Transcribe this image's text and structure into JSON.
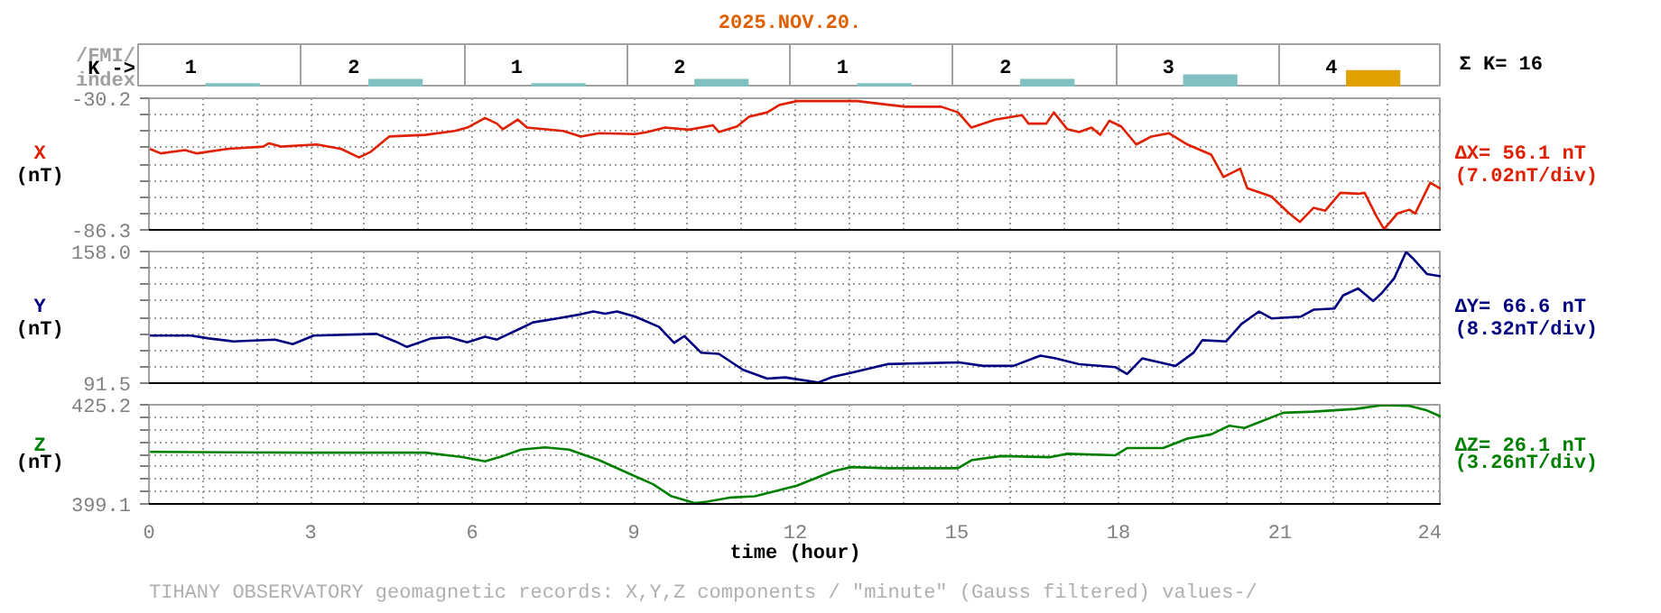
{
  "chart_data": [
    {
      "type": "bar",
      "title": "2025.NOV.20.",
      "ylabel": "K ->",
      "annotations": [
        "/FMI/",
        "index",
        "Σ K= 16"
      ],
      "categories": [
        null,
        null,
        null,
        null,
        null,
        null,
        null,
        null
      ],
      "values": [
        1,
        2,
        1,
        2,
        1,
        2,
        3,
        4
      ],
      "colors": [
        "#80c0c0",
        "#80c0c0",
        "#80c0c0",
        "#80c0c0",
        "#80c0c0",
        "#80c0c0",
        "#80c0c0",
        "#e0a000"
      ],
      "data_labels": true
    },
    {
      "type": "line",
      "ylabel": "X (nT)",
      "annotations": [
        "ΔX= 56.1 nT",
        "(7.02nT/div)"
      ],
      "tick_labels": "y",
      "grid": true,
      "xlim": [
        0,
        24
      ],
      "ylim": [
        -86.3,
        -30.2
      ],
      "xticks": [
        0,
        {
          "value": 1,
          "label": null
        },
        {
          "value": 2,
          "label": null
        },
        3,
        {
          "value": 4,
          "label": null
        },
        {
          "value": 5,
          "label": null
        },
        6,
        {
          "value": 7,
          "label": null
        },
        {
          "value": 8,
          "label": null
        },
        9,
        {
          "value": 10,
          "label": null
        },
        {
          "value": 11,
          "label": null
        },
        12,
        {
          "value": 13,
          "label": null
        },
        {
          "value": 14,
          "label": null
        },
        15,
        {
          "value": 16,
          "label": null
        },
        {
          "value": 17,
          "label": null
        },
        18,
        {
          "value": 19,
          "label": null
        },
        {
          "value": 20,
          "label": null
        },
        21,
        {
          "value": 22,
          "label": null
        },
        {
          "value": 23,
          "label": null
        },
        24
      ],
      "yticks": [
        -30.2,
        {
          "value": -37.21,
          "label": null
        },
        {
          "value": -44.23,
          "label": null
        },
        {
          "value": -51.24,
          "label": null
        },
        {
          "value": -58.25,
          "label": null
        },
        {
          "value": -65.26,
          "label": null
        },
        {
          "value": -72.28,
          "label": null
        },
        {
          "value": -79.29,
          "label": null
        },
        -86.3
      ],
      "series": [
        {
          "color": "#e02000",
          "x": [
            0.02,
            0.22,
            0.67,
            0.89,
            1.45,
            2.12,
            2.23,
            2.45,
            3.12,
            3.57,
            3.9,
            4.12,
            4.46,
            5.13,
            5.68,
            5.91,
            6.24,
            6.46,
            6.57,
            6.85,
            7.02,
            7.69,
            8.02,
            8.36,
            9.03,
            9.25,
            9.58,
            10.03,
            10.47,
            10.58,
            10.92,
            11.14,
            11.48,
            11.7,
            12.03,
            12.37,
            13.15,
            14.04,
            14.71,
            15.02,
            15.27,
            15.71,
            16.21,
            16.33,
            16.66,
            16.8,
            17.05,
            17.27,
            17.5,
            17.66,
            17.83,
            18.05,
            18.33,
            18.61,
            18.94,
            19.28,
            19.72,
            19.95,
            20.26,
            20.39,
            20.84,
            21.17,
            21.37,
            21.62,
            21.84,
            22.12,
            22.45,
            22.57,
            22.79,
            22.93,
            23.18,
            23.4,
            23.51,
            23.79,
            24.0
          ],
          "values": [
            -51.8,
            -53.7,
            -52.3,
            -53.7,
            -51.8,
            -50.8,
            -49.4,
            -50.8,
            -49.9,
            -51.8,
            -55.4,
            -53.0,
            -46.5,
            -45.8,
            -44.1,
            -42.7,
            -38.6,
            -41.0,
            -43.4,
            -39.3,
            -42.7,
            -44.1,
            -46.5,
            -45.1,
            -45.5,
            -44.6,
            -42.7,
            -43.6,
            -41.7,
            -44.6,
            -42.2,
            -38.1,
            -36.2,
            -33.1,
            -31.4,
            -31.4,
            -31.4,
            -33.8,
            -33.8,
            -36.2,
            -42.7,
            -39.3,
            -37.4,
            -41.0,
            -41.0,
            -36.2,
            -43.4,
            -44.6,
            -42.7,
            -45.8,
            -39.8,
            -42.2,
            -49.9,
            -46.5,
            -45.1,
            -49.9,
            -54.2,
            -63.8,
            -60.2,
            -68.5,
            -72.1,
            -79.3,
            -82.9,
            -76.9,
            -78.1,
            -70.5,
            -70.9,
            -70.5,
            -80.5,
            -86.0,
            -79.3,
            -77.7,
            -79.3,
            -66.2,
            -69.0
          ]
        }
      ]
    },
    {
      "type": "line",
      "ylabel": "Y (nT)",
      "annotations": [
        "ΔY= 66.6 nT",
        "(8.32nT/div)"
      ],
      "tick_labels": "y",
      "grid": true,
      "xlim": [
        0,
        24
      ],
      "ylim": [
        91.5,
        158.0
      ],
      "xticks": [
        0,
        {
          "value": 1,
          "label": null
        },
        {
          "value": 2,
          "label": null
        },
        3,
        {
          "value": 4,
          "label": null
        },
        {
          "value": 5,
          "label": null
        },
        6,
        {
          "value": 7,
          "label": null
        },
        {
          "value": 8,
          "label": null
        },
        9,
        {
          "value": 10,
          "label": null
        },
        {
          "value": 11,
          "label": null
        },
        12,
        {
          "value": 13,
          "label": null
        },
        {
          "value": 14,
          "label": null
        },
        15,
        {
          "value": 16,
          "label": null
        },
        {
          "value": 17,
          "label": null
        },
        18,
        {
          "value": 19,
          "label": null
        },
        {
          "value": 20,
          "label": null
        },
        21,
        {
          "value": 22,
          "label": null
        },
        {
          "value": 23,
          "label": null
        },
        24
      ],
      "yticks": [
        {
          "value": 158.0,
          "label": "158.0"
        },
        {
          "value": 149.69,
          "label": null
        },
        {
          "value": 141.38,
          "label": null
        },
        {
          "value": 133.06,
          "label": null
        },
        {
          "value": 124.75,
          "label": null
        },
        {
          "value": 116.44,
          "label": null
        },
        {
          "value": 108.13,
          "label": null
        },
        {
          "value": 99.81,
          "label": null
        },
        91.5
      ],
      "series": [
        {
          "color": "#000080",
          "x": [
            0.02,
            0.78,
            1.11,
            1.56,
            2.34,
            2.67,
            3.06,
            4.23,
            4.57,
            4.79,
            5.24,
            5.57,
            5.91,
            6.24,
            6.46,
            6.91,
            7.13,
            7.58,
            8.02,
            8.25,
            8.47,
            8.69,
            9.03,
            9.47,
            9.75,
            9.94,
            10.25,
            10.58,
            11.03,
            11.48,
            11.81,
            12.42,
            12.7,
            13.04,
            13.71,
            15.04,
            15.49,
            16.05,
            16.55,
            16.83,
            17.27,
            17.94,
            18.16,
            18.44,
            19.06,
            19.39,
            19.56,
            20.0,
            20.28,
            20.61,
            20.84,
            21.39,
            21.62,
            22.01,
            22.17,
            22.45,
            22.73,
            22.9,
            23.12,
            23.34,
            23.46,
            23.73,
            24.0
          ],
          "values": [
            115.5,
            115.5,
            114.1,
            112.6,
            113.5,
            111.2,
            115.5,
            116.4,
            112.6,
            109.8,
            114.1,
            114.7,
            112.1,
            115.0,
            113.5,
            119.3,
            122.2,
            124.2,
            126.3,
            127.7,
            126.6,
            127.7,
            125.1,
            119.9,
            111.8,
            115.3,
            106.9,
            106.3,
            98.2,
            93.8,
            94.4,
            91.8,
            94.7,
            96.7,
            101.1,
            102.0,
            100.2,
            100.2,
            105.4,
            104.0,
            101.1,
            99.6,
            96.1,
            104.0,
            100.2,
            106.8,
            113.2,
            112.6,
            121.3,
            127.7,
            124.2,
            125.1,
            128.6,
            129.2,
            135.8,
            139.3,
            133.0,
            137.3,
            144.5,
            157.8,
            154.7,
            146.6,
            145.4
          ]
        }
      ]
    },
    {
      "type": "line",
      "ylabel": "Z (nT)",
      "xlabel": "time (hour)",
      "annotations": [
        "ΔZ= 26.1 nT",
        "(3.26nT/div)",
        "TIHANY OBSERVATORY   geomagnetic records:  X,Y,Z  components   / \"minute\" (Gauss filtered) values-/"
      ],
      "grid": true,
      "xlim": [
        0,
        24
      ],
      "ylim": [
        399.1,
        425.2
      ],
      "xticks": [
        0,
        {
          "value": 1,
          "label": null
        },
        {
          "value": 2,
          "label": null
        },
        3,
        {
          "value": 4,
          "label": null
        },
        {
          "value": 5,
          "label": null
        },
        6,
        {
          "value": 7,
          "label": null
        },
        {
          "value": 8,
          "label": null
        },
        9,
        {
          "value": 10,
          "label": null
        },
        {
          "value": 11,
          "label": null
        },
        12,
        {
          "value": 13,
          "label": null
        },
        {
          "value": 14,
          "label": null
        },
        15,
        {
          "value": 16,
          "label": null
        },
        {
          "value": 17,
          "label": null
        },
        18,
        {
          "value": 19,
          "label": null
        },
        {
          "value": 20,
          "label": null
        },
        21,
        {
          "value": 22,
          "label": null
        },
        {
          "value": 23,
          "label": null
        },
        24
      ],
      "yticks": [
        425.2,
        {
          "value": 421.94,
          "label": null
        },
        {
          "value": 418.68,
          "label": null
        },
        {
          "value": 415.41,
          "label": null
        },
        {
          "value": 412.15,
          "label": null
        },
        {
          "value": 408.89,
          "label": null
        },
        {
          "value": 405.63,
          "label": null
        },
        {
          "value": 402.36,
          "label": null
        },
        399.1
      ],
      "series": [
        {
          "color": "#008000",
          "x": [
            0.02,
            2.9,
            5.13,
            5.79,
            6.24,
            6.57,
            6.91,
            7.35,
            7.8,
            8.36,
            8.91,
            9.36,
            9.69,
            10.14,
            10.36,
            10.81,
            11.25,
            12.03,
            12.7,
            13.04,
            13.71,
            15.02,
            15.27,
            15.82,
            16.72,
            17.05,
            17.94,
            18.16,
            18.83,
            19.28,
            19.72,
            20.06,
            20.34,
            21.06,
            21.62,
            22.4,
            22.9,
            23.4,
            23.73,
            24.0
          ],
          "values": [
            412.8,
            412.6,
            412.6,
            411.5,
            410.3,
            411.7,
            413.4,
            414.0,
            413.4,
            410.6,
            407.1,
            404.3,
            401.2,
            399.3,
            399.7,
            400.8,
            401.1,
            403.9,
            407.7,
            408.8,
            408.5,
            408.5,
            410.6,
            411.7,
            411.4,
            412.3,
            411.9,
            413.8,
            413.8,
            416.3,
            417.4,
            419.7,
            419.1,
            423.1,
            423.4,
            424.1,
            425.1,
            424.9,
            423.7,
            422.0
          ]
        }
      ]
    }
  ]
}
